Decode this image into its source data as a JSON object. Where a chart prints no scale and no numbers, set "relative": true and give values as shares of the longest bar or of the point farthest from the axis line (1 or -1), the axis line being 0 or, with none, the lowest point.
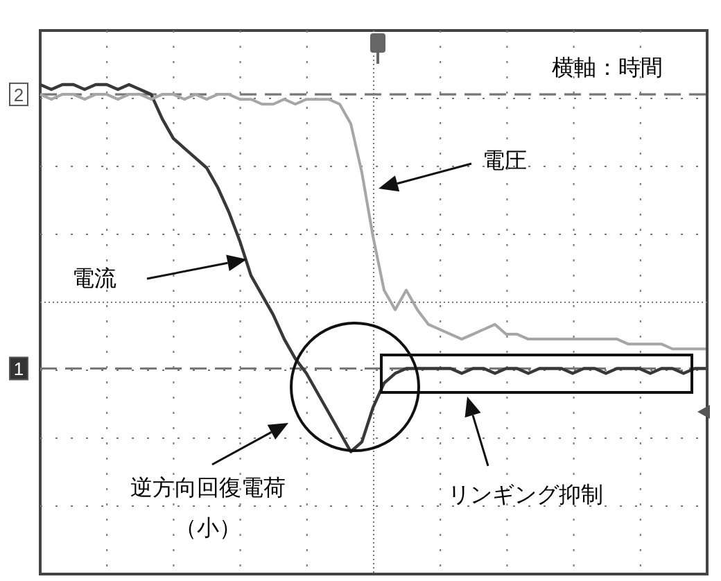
{
  "chart_data": {
    "type": "line",
    "relative": true,
    "grid": true,
    "marker": "none",
    "line_style": "solid",
    "categories": [
      null,
      null,
      null,
      null,
      null,
      null,
      null,
      null,
      null,
      null,
      null,
      null,
      null,
      null,
      null,
      null,
      null,
      null,
      null,
      null,
      null,
      null,
      null,
      null,
      null,
      null,
      null,
      null,
      null,
      null,
      null,
      null,
      null,
      null,
      null,
      null,
      null,
      null,
      null,
      null,
      null,
      null,
      null,
      null,
      null,
      null,
      null,
      null,
      null,
      null,
      null,
      null,
      null,
      null,
      null,
      null,
      null,
      null,
      null,
      null,
      null
    ],
    "series": [
      {
        "color": "#383838",
        "values": [
          1.0,
          0.99,
          1.0,
          1.0,
          0.99,
          1.0,
          1.0,
          0.99,
          1.0,
          0.99,
          0.98,
          0.93,
          0.89,
          0.87,
          0.85,
          0.83,
          0.79,
          0.74,
          0.68,
          0.61,
          0.57,
          0.53,
          0.48,
          0.44,
          0.41,
          0.37,
          0.33,
          0.29,
          0.25,
          0.27,
          0.34,
          0.39,
          0.41,
          0.42,
          0.42,
          0.42,
          0.42,
          0.42,
          0.41,
          0.42,
          0.42,
          0.41,
          0.42,
          0.42,
          0.41,
          0.42,
          0.42,
          0.42,
          0.41,
          0.42,
          0.42,
          0.41,
          0.42,
          0.42,
          0.42,
          0.41,
          0.42,
          0.42,
          0.41,
          0.42,
          0.42
        ]
      },
      {
        "color": "#a6a6a6",
        "values": [
          0.98,
          0.97,
          0.98,
          0.98,
          0.97,
          0.98,
          0.98,
          0.97,
          0.98,
          0.98,
          0.97,
          0.98,
          0.98,
          0.97,
          0.98,
          0.97,
          0.98,
          0.98,
          0.97,
          0.97,
          0.96,
          0.96,
          0.97,
          0.96,
          0.97,
          0.97,
          0.97,
          0.96,
          0.92,
          0.82,
          0.69,
          0.58,
          0.54,
          0.58,
          0.54,
          0.51,
          0.5,
          0.49,
          0.48,
          0.49,
          0.5,
          0.51,
          0.49,
          0.49,
          0.48,
          0.48,
          0.48,
          0.48,
          0.48,
          0.48,
          0.48,
          0.48,
          0.48,
          0.47,
          0.47,
          0.47,
          0.47,
          0.46,
          0.46,
          0.46,
          0.46
        ]
      }
    ],
    "ref_lines": [
      {
        "axis": "y",
        "value": 0.98,
        "line_style": "dashed"
      },
      {
        "axis": "y",
        "value": 0.42,
        "line_style": "dashed"
      }
    ],
    "annotations": [
      "横軸：時間",
      "逆方向回復電荷",
      "（小）",
      "リンギング抑制",
      "電流",
      "電圧",
      "2",
      "1"
    ]
  }
}
